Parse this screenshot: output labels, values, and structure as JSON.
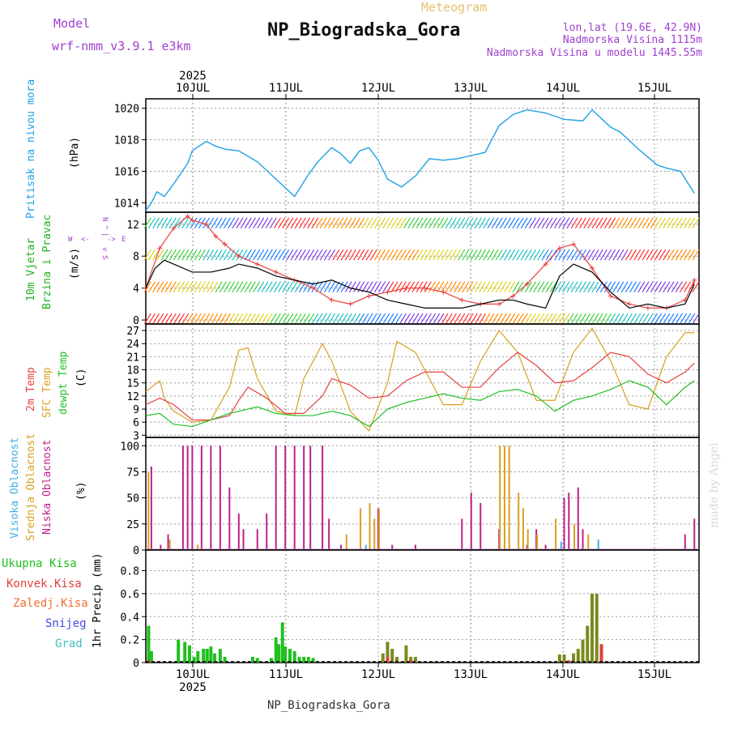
{
  "header": {
    "model_label": "Model",
    "model_name": "wrf-nmm_v3.9.1  e3km",
    "product": "Meteogram",
    "station": "NP_Biogradska_Gora",
    "coords": "lon,lat (19.6E, 42.9N)",
    "elevation": "Nadmorska Visina 1115m",
    "model_elevation": "Nadmorska Visina u modelu 1445.55m",
    "footer": "NP_Biogradska_Gora",
    "watermark": "made by Angel"
  },
  "colors": {
    "pressure": "#1ea0e6",
    "temp": "#e84040",
    "sfc_temp": "#d9a020",
    "dewpt": "#20c020",
    "low_cloud": "#c0208a",
    "mid_cloud": "#d8a020",
    "high_cloud": "#40b0e0",
    "total_rain": "#20c020",
    "conv_rain": "#e04040",
    "snow": "#4848e0",
    "hail": "#40c0c0",
    "wind_obs": "#e84040",
    "wind_mean": "#000000",
    "purple": "#a040d0"
  },
  "chart_data": [
    {
      "type": "line",
      "id": "pressure",
      "title": "Pritisak na nivou mora",
      "ylabel": "(hPa)",
      "ylim": [
        1013.4,
        1020.6
      ],
      "yticks": [
        1014,
        1016,
        1018,
        1020
      ],
      "series": [
        {
          "name": "Pritisak na nivou mora",
          "x": [
            0,
            0.06,
            0.12,
            0.2,
            0.3,
            0.45,
            0.5,
            0.65,
            0.75,
            0.85,
            1.0,
            1.2,
            1.4,
            1.6,
            1.75,
            1.85,
            2.0,
            2.1,
            2.2,
            2.3,
            2.4,
            2.5,
            2.6,
            2.75,
            2.9,
            3.05,
            3.2,
            3.35,
            3.5,
            3.65,
            3.8,
            3.95,
            4.1,
            4.3,
            4.5,
            4.7,
            4.8,
            5.0,
            5.1,
            5.3,
            5.4,
            5.5,
            5.6,
            5.75,
            5.9
          ],
          "values": [
            1013.5,
            1014.0,
            1014.7,
            1014.4,
            1015.2,
            1016.5,
            1017.3,
            1017.9,
            1017.6,
            1017.4,
            1017.3,
            1016.6,
            1015.5,
            1014.4,
            1015.8,
            1016.6,
            1017.5,
            1017.1,
            1016.5,
            1017.3,
            1017.5,
            1016.7,
            1015.5,
            1015.0,
            1015.7,
            1016.8,
            1016.7,
            1016.8,
            1017.0,
            1017.2,
            1018.9,
            1019.6,
            1019.9,
            1019.7,
            1019.3,
            1019.2,
            1019.9,
            1018.8,
            1018.5,
            1017.4,
            1016.9,
            1016.4,
            1016.2,
            1016.0,
            1014.6
          ]
        }
      ]
    },
    {
      "type": "line",
      "id": "wind",
      "title": "10m Vjetar",
      "title2": "Brzina i Pravac",
      "ylabel": "(m/s)",
      "ylim": [
        -0.5,
        13.5
      ],
      "yticks": [
        0,
        4,
        8,
        12
      ],
      "legend": [
        "N",
        "^",
        "|",
        "W",
        "<-",
        "->",
        "E",
        "v",
        "S"
      ],
      "series": [
        {
          "name": "Brzina",
          "x": [
            0,
            0.1,
            0.2,
            0.3,
            0.5,
            0.7,
            0.9,
            1.0,
            1.2,
            1.4,
            1.6,
            1.8,
            2.0,
            2.2,
            2.4,
            2.6,
            2.8,
            3.0,
            3.2,
            3.4,
            3.6,
            3.8,
            3.95,
            4.1,
            4.3,
            4.45,
            4.6,
            4.8,
            5.0,
            5.2,
            5.4,
            5.6,
            5.8,
            5.9
          ],
          "values": [
            4.0,
            6.5,
            7.5,
            7.0,
            6.0,
            6.0,
            6.5,
            7.0,
            6.5,
            5.5,
            5.0,
            4.5,
            5.0,
            4.0,
            3.5,
            2.5,
            2.0,
            1.5,
            1.5,
            1.5,
            2.0,
            2.5,
            2.5,
            2.0,
            1.5,
            5.5,
            7.0,
            6.0,
            3.5,
            1.5,
            2.0,
            1.5,
            2.0,
            4.5
          ]
        },
        {
          "name": "Udari",
          "x": [
            0,
            0.15,
            0.3,
            0.45,
            0.5,
            0.65,
            0.75,
            0.85,
            1.0,
            1.2,
            1.4,
            1.6,
            1.8,
            2.0,
            2.2,
            2.4,
            2.6,
            2.8,
            3.0,
            3.2,
            3.4,
            3.6,
            3.8,
            3.95,
            4.1,
            4.3,
            4.45,
            4.6,
            4.8,
            5.0,
            5.2,
            5.4,
            5.6,
            5.8,
            5.9
          ],
          "values": [
            4.0,
            9.0,
            11.5,
            13.0,
            12.5,
            12.0,
            10.5,
            9.5,
            8.0,
            7.0,
            6.0,
            5.0,
            4.0,
            2.5,
            2.0,
            3.0,
            3.5,
            4.0,
            4.0,
            3.5,
            2.5,
            2.0,
            2.0,
            3.0,
            4.5,
            7.0,
            9.0,
            9.5,
            6.5,
            3.0,
            2.0,
            1.5,
            1.5,
            2.5,
            5.0
          ]
        }
      ],
      "barb_rows": [
        0,
        4,
        8,
        12
      ]
    },
    {
      "type": "line",
      "id": "temperature",
      "titles": [
        "2m Temp",
        "SFC Temp",
        "dewpt Temp"
      ],
      "ylabel": "(C)",
      "ylim": [
        2.5,
        28.5
      ],
      "yticks": [
        3,
        6,
        9,
        12,
        15,
        18,
        21,
        24,
        27
      ],
      "series": [
        {
          "name": "2m Temp",
          "x": [
            0,
            0.15,
            0.3,
            0.5,
            0.7,
            0.9,
            1.0,
            1.1,
            1.3,
            1.5,
            1.7,
            1.9,
            2.0,
            2.2,
            2.4,
            2.6,
            2.8,
            3.0,
            3.2,
            3.4,
            3.6,
            3.8,
            4.0,
            4.2,
            4.4,
            4.6,
            4.8,
            5.0,
            5.2,
            5.4,
            5.6,
            5.8,
            5.9
          ],
          "values": [
            10.0,
            11.5,
            10.0,
            6.5,
            6.5,
            7.5,
            11.0,
            14.0,
            11.5,
            8.0,
            8.0,
            12.0,
            16.0,
            14.5,
            11.5,
            12.0,
            15.5,
            17.5,
            17.5,
            14.0,
            14.0,
            18.5,
            22.0,
            19.0,
            15.0,
            15.5,
            18.5,
            22.0,
            21.0,
            17.0,
            15.0,
            17.5,
            19.5
          ]
        },
        {
          "name": "SFC Temp",
          "x": [
            0,
            0.15,
            0.2,
            0.3,
            0.5,
            0.7,
            0.9,
            1.0,
            1.1,
            1.2,
            1.4,
            1.6,
            1.7,
            1.9,
            2.0,
            2.2,
            2.4,
            2.6,
            2.7,
            2.9,
            3.0,
            3.2,
            3.4,
            3.6,
            3.8,
            4.0,
            4.2,
            4.4,
            4.6,
            4.8,
            5.0,
            5.2,
            5.4,
            5.6,
            5.8,
            5.9
          ],
          "values": [
            13.0,
            15.5,
            11.5,
            8.5,
            6.0,
            6.5,
            14.0,
            22.5,
            23.0,
            16.0,
            8.5,
            7.5,
            16.0,
            24.0,
            20.0,
            8.5,
            4.0,
            15.0,
            24.5,
            22.0,
            18.0,
            10.0,
            10.0,
            20.0,
            27.0,
            22.0,
            11.0,
            11.0,
            22.0,
            27.5,
            20.0,
            10.0,
            9.0,
            21.0,
            26.5,
            26.5
          ]
        },
        {
          "name": "dewpt Temp",
          "x": [
            0,
            0.15,
            0.3,
            0.5,
            0.7,
            0.9,
            1.0,
            1.2,
            1.4,
            1.6,
            1.8,
            2.0,
            2.2,
            2.4,
            2.6,
            2.8,
            3.0,
            3.2,
            3.4,
            3.6,
            3.8,
            4.0,
            4.2,
            4.4,
            4.6,
            4.8,
            5.0,
            5.2,
            5.4,
            5.6,
            5.8,
            5.9
          ],
          "values": [
            7.5,
            8.0,
            5.5,
            5.0,
            6.5,
            8.0,
            8.5,
            9.5,
            8.0,
            7.5,
            7.5,
            8.5,
            7.5,
            5.0,
            9.0,
            10.5,
            11.5,
            12.5,
            11.5,
            11.0,
            13.0,
            13.5,
            12.0,
            8.5,
            11.0,
            12.0,
            13.5,
            15.5,
            14.0,
            10.0,
            14.0,
            15.5
          ]
        }
      ]
    },
    {
      "type": "bar",
      "id": "clouds",
      "titles": [
        "Visoka Oblacnost",
        "Srednja Oblacnost",
        "Niska Oblacnost"
      ],
      "ylabel": "(%)",
      "ylim": [
        0,
        108
      ],
      "yticks": [
        0,
        25,
        50,
        75,
        100
      ],
      "series": [
        {
          "name": "Niska Oblacnost",
          "x": [
            0.06,
            0.16,
            0.24,
            0.4,
            0.45,
            0.5,
            0.6,
            0.7,
            0.8,
            0.9,
            1.0,
            1.05,
            1.2,
            1.3,
            1.4,
            1.5,
            1.6,
            1.7,
            1.77,
            1.9,
            1.97,
            2.1,
            2.5,
            2.65,
            2.9,
            3.4,
            3.5,
            3.6,
            3.8,
            4.1,
            4.2,
            4.3,
            4.5,
            4.55,
            4.65,
            4.7,
            5.8,
            5.9
          ],
          "values": [
            80,
            5,
            15,
            100,
            100,
            100,
            100,
            100,
            100,
            60,
            35,
            20,
            20,
            35,
            100,
            100,
            100,
            100,
            100,
            100,
            30,
            5,
            40,
            5,
            5,
            30,
            55,
            45,
            20,
            5,
            20,
            5,
            50,
            55,
            60,
            20,
            15,
            30
          ]
        },
        {
          "name": "Srednja Oblacnost",
          "x": [
            0.02,
            0.25,
            0.55,
            2.15,
            2.3,
            2.4,
            2.45,
            2.5,
            3.8,
            3.85,
            3.9,
            4.0,
            4.05,
            4.1,
            4.2,
            4.4,
            4.6,
            4.75
          ],
          "values": [
            75,
            10,
            5,
            15,
            40,
            45,
            30,
            40,
            100,
            100,
            100,
            55,
            40,
            20,
            15,
            30,
            25,
            15
          ]
        },
        {
          "name": "Visoka Oblacnost",
          "x": [
            2.35,
            4.45,
            4.85
          ],
          "values": [
            5,
            8,
            10
          ]
        }
      ]
    },
    {
      "type": "bar",
      "id": "precip",
      "titles": [
        "Ukupna Kisa",
        "Konvek.Kisa",
        "Zaledj.Kisa",
        "Snijeg",
        "Grad"
      ],
      "ylabel": "1hr Precip (mm)",
      "ylim": [
        0,
        0.98
      ],
      "yticks": [
        0,
        0.2,
        0.4,
        0.6,
        0.8
      ],
      "series": [
        {
          "name": "Ukupna Kisa",
          "x": [
            0.03,
            0.06,
            0.35,
            0.42,
            0.47,
            0.52,
            0.56,
            0.62,
            0.66,
            0.7,
            0.74,
            0.8,
            0.85,
            1.15,
            1.2,
            1.35,
            1.4,
            1.43,
            1.47,
            1.5,
            1.55,
            1.6,
            1.65,
            1.7,
            1.75,
            1.8,
            2.55,
            2.6,
            2.65,
            2.7,
            2.8,
            2.85,
            2.9,
            4.45,
            4.5,
            4.6,
            4.65,
            4.7,
            4.75,
            4.8,
            4.85,
            4.9
          ],
          "values": [
            0.32,
            0.1,
            0.2,
            0.18,
            0.15,
            0.05,
            0.1,
            0.12,
            0.12,
            0.14,
            0.08,
            0.12,
            0.05,
            0.05,
            0.04,
            0.04,
            0.22,
            0.16,
            0.35,
            0.14,
            0.12,
            0.1,
            0.05,
            0.05,
            0.05,
            0.04,
            0.08,
            0.18,
            0.12,
            0.05,
            0.15,
            0.05,
            0.05,
            0.07,
            0.07,
            0.08,
            0.12,
            0.2,
            0.32,
            0.6,
            0.6,
            0.16
          ]
        },
        {
          "name": "Konvek.Kisa",
          "x": [
            0.03,
            2.6,
            2.85,
            4.55,
            4.9
          ],
          "values": [
            0.02,
            0.05,
            0.02,
            0.02,
            0.16
          ]
        }
      ]
    }
  ],
  "axes": {
    "date_labels": [
      "10JUL",
      "11JUL",
      "12JUL",
      "13JUL",
      "14JUL",
      "15JUL"
    ],
    "year_label": "2025",
    "x_range": [
      0,
      5.95
    ]
  }
}
